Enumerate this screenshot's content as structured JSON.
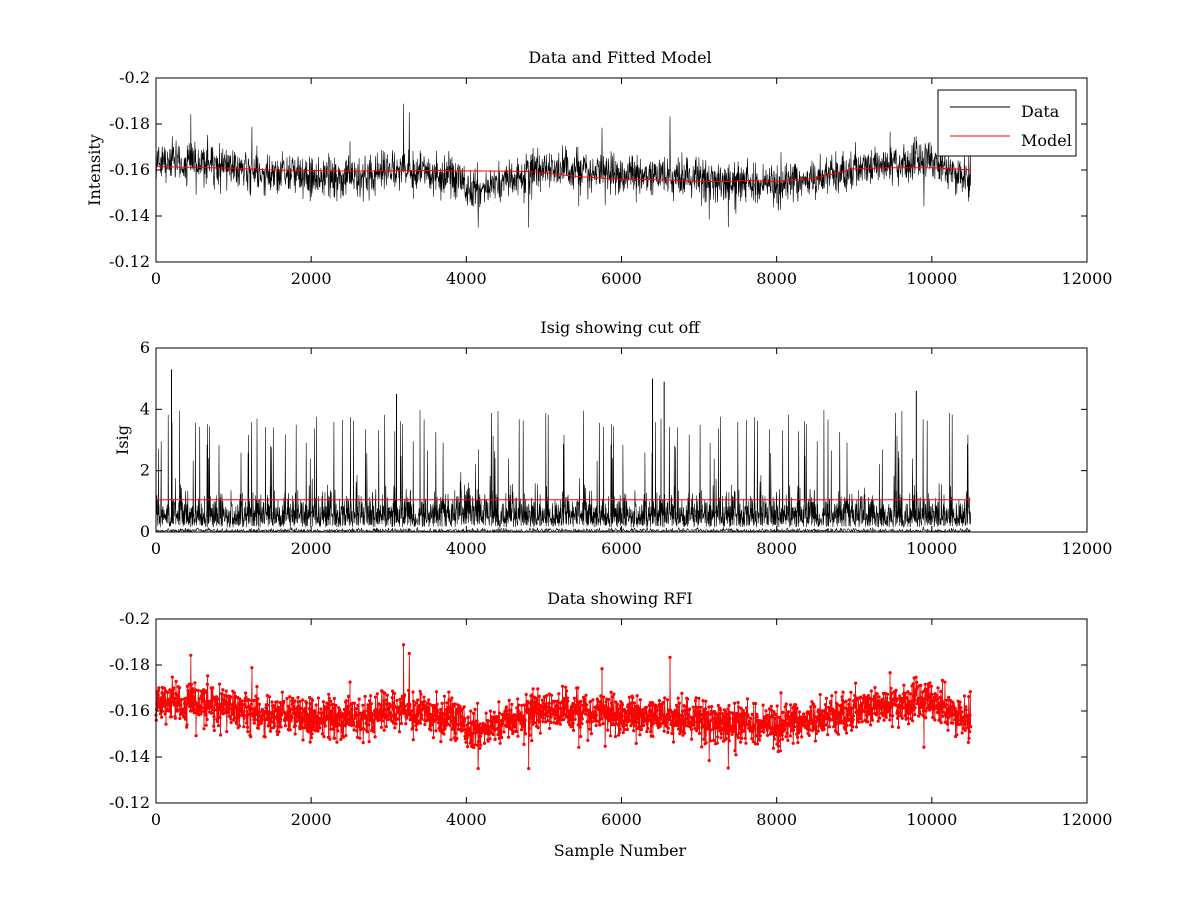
{
  "figure": {
    "background": "#ffffff"
  },
  "chart_data": [
    {
      "type": "line",
      "title": "Data and Fitted Model",
      "xlabel": "",
      "ylabel": "Intensity",
      "xlim": [
        0,
        12000
      ],
      "ylim": [
        -0.2,
        -0.12
      ],
      "y_direction": "reversed",
      "xticks": [
        "0",
        "2000",
        "4000",
        "6000",
        "8000",
        "10000",
        "12000"
      ],
      "yticks": [
        "-0.12",
        "-0.14",
        "-0.16",
        "-0.18",
        "-0.2"
      ],
      "grid": false,
      "legend": {
        "position": "top-right",
        "entries": [
          "Data",
          "Model"
        ]
      },
      "sample_count": 10500,
      "series": [
        {
          "name": "Data",
          "color": "#000000",
          "style": "noisy-line",
          "baseline_x": [
            0,
            500,
            1000,
            1500,
            2000,
            2500,
            3000,
            3500,
            3900,
            4100,
            4300,
            4800,
            5000,
            5500,
            6000,
            6500,
            7000,
            7500,
            8000,
            8500,
            9000,
            9500,
            10000,
            10500
          ],
          "baseline_y": [
            -0.164,
            -0.163,
            -0.161,
            -0.159,
            -0.157,
            -0.156,
            -0.16,
            -0.159,
            -0.155,
            -0.15,
            -0.154,
            -0.158,
            -0.161,
            -0.16,
            -0.158,
            -0.157,
            -0.156,
            -0.155,
            -0.153,
            -0.156,
            -0.16,
            -0.163,
            -0.163,
            -0.157
          ],
          "min": -0.198,
          "max": -0.135
        },
        {
          "name": "Model",
          "color": "#ff0000",
          "style": "line",
          "x": [
            0,
            1000,
            1500,
            2000,
            2500,
            3000,
            3500,
            4000,
            4500,
            4900,
            5200,
            5500,
            6000,
            6500,
            7000,
            7400,
            7600,
            8000,
            8500,
            9000,
            9500,
            10000,
            10500
          ],
          "y": [
            -0.1615,
            -0.1608,
            -0.16,
            -0.1598,
            -0.1595,
            -0.1597,
            -0.1598,
            -0.1596,
            -0.1595,
            -0.1592,
            -0.158,
            -0.157,
            -0.156,
            -0.1558,
            -0.155,
            -0.155,
            -0.1555,
            -0.155,
            -0.1565,
            -0.1605,
            -0.161,
            -0.161,
            -0.16
          ]
        }
      ]
    },
    {
      "type": "line",
      "title": "Isig showing cut off",
      "xlabel": "",
      "ylabel": "Isig",
      "xlim": [
        0,
        12000
      ],
      "ylim": [
        0,
        6
      ],
      "xticks": [
        "0",
        "2000",
        "4000",
        "6000",
        "8000",
        "10000",
        "12000"
      ],
      "yticks": [
        "0",
        "2",
        "4",
        "6"
      ],
      "grid": false,
      "sample_count": 10500,
      "series": [
        {
          "color": "#000000",
          "style": "noisy-spikes",
          "min": 0,
          "max": 5.3,
          "spikes": [
            [
              200,
              5.3
            ],
            [
              6400,
              5.0
            ],
            [
              6550,
              4.9
            ],
            [
              3100,
              4.5
            ],
            [
              9800,
              4.6
            ]
          ]
        },
        {
          "color": "#ff0000",
          "style": "line",
          "x": [
            0,
            10500
          ],
          "y": [
            1.05,
            1.05
          ]
        }
      ]
    },
    {
      "type": "line",
      "title": "Data showing RFI",
      "xlabel": "Sample Number",
      "ylabel": "",
      "xlim": [
        0,
        12000
      ],
      "ylim": [
        -0.2,
        -0.12
      ],
      "y_direction": "reversed",
      "xticks": [
        "0",
        "2000",
        "4000",
        "6000",
        "8000",
        "10000",
        "12000"
      ],
      "yticks": [
        "-0.12",
        "-0.14",
        "-0.16",
        "-0.18",
        "-0.2"
      ],
      "grid": false,
      "sample_count": 10500,
      "series": [
        {
          "color": "#000000",
          "style": "noisy-line"
        },
        {
          "color": "#ff0000",
          "style": "markers-over-line",
          "marker": "dot"
        }
      ]
    }
  ]
}
